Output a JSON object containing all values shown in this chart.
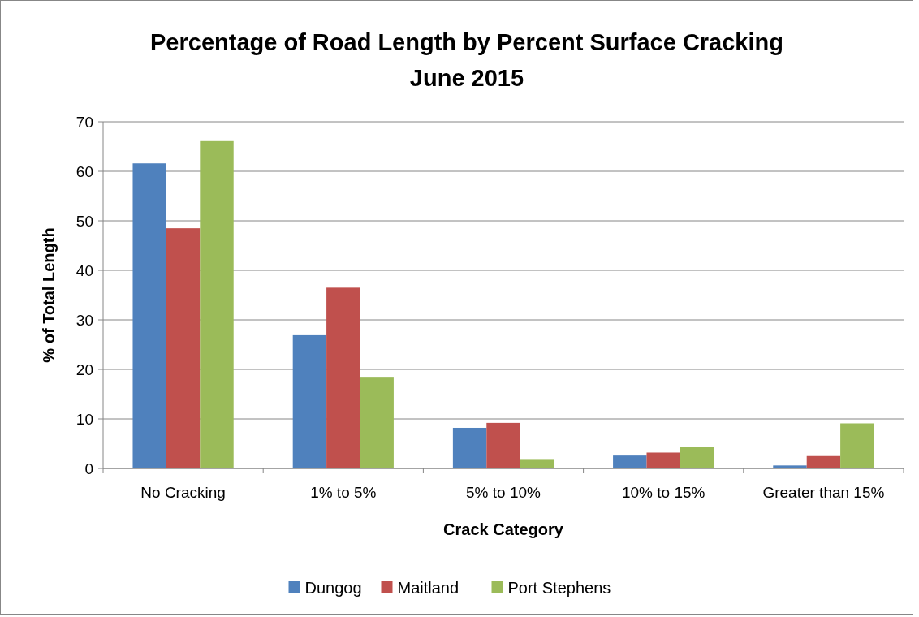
{
  "chart_data": {
    "type": "bar",
    "title": "Percentage of Road Length by Percent Surface Cracking\nJune 2015",
    "xlabel": "Crack Category",
    "ylabel": "% of Total Length",
    "categories": [
      "No Cracking",
      "1% to 5%",
      "5% to 10%",
      "10% to 15%",
      "Greater than 15%"
    ],
    "series": [
      {
        "name": "Dungog",
        "color": "#4f81bd",
        "values": [
          61.6,
          26.9,
          8.2,
          2.6,
          0.6
        ]
      },
      {
        "name": "Maitland",
        "color": "#c0504d",
        "values": [
          48.5,
          36.5,
          9.2,
          3.2,
          2.5
        ]
      },
      {
        "name": "Port Stephens",
        "color": "#9bbb59",
        "values": [
          66.1,
          18.5,
          1.9,
          4.3,
          9.1
        ]
      }
    ],
    "ylim": [
      0,
      70
    ],
    "yticks": [
      0,
      10,
      20,
      30,
      40,
      50,
      60,
      70
    ],
    "grid": "y",
    "legend": "bottom"
  }
}
